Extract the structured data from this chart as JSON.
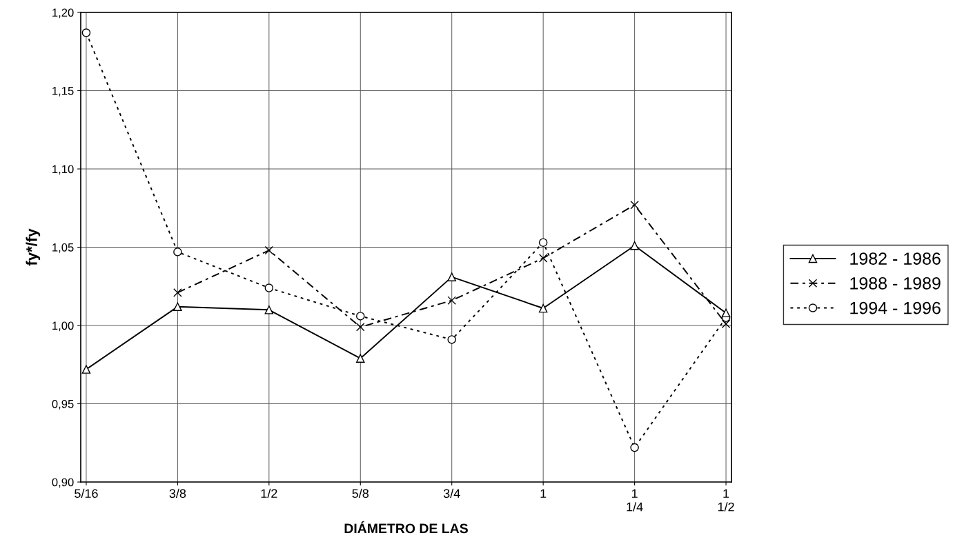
{
  "chart_data": {
    "type": "line",
    "xlabel": "DIÁMETRO DE LAS",
    "ylabel": "fy*/fy",
    "categories": [
      "5/16",
      "3/8",
      "1/2",
      "5/8",
      "3/4",
      "1",
      "1\n1/4",
      "1\n1/2"
    ],
    "series": [
      {
        "name": "1982 - 1986",
        "color": "#000000",
        "marker": "triangle",
        "line_style": "solid",
        "values": [
          0.972,
          1.012,
          1.01,
          0.979,
          1.031,
          1.011,
          1.051,
          1.008
        ]
      },
      {
        "name": "1988 - 1989",
        "color": "#000000",
        "marker": "cross",
        "line_style": "dashed",
        "values": [
          null,
          1.021,
          1.048,
          0.999,
          1.016,
          1.043,
          1.077,
          1.001
        ]
      },
      {
        "name": "1994 - 1996",
        "color": "#000000",
        "marker": "circle",
        "line_style": "dotted",
        "values": [
          1.187,
          1.047,
          1.024,
          1.006,
          0.991,
          1.053,
          0.922,
          1.005
        ]
      }
    ],
    "ylim": [
      0.9,
      1.2
    ],
    "yticks": [
      {
        "value": 0.9,
        "label": "0,90"
      },
      {
        "value": 0.95,
        "label": "0,95"
      },
      {
        "value": 1.0,
        "label": "1,00"
      },
      {
        "value": 1.05,
        "label": "1,05"
      },
      {
        "value": 1.1,
        "label": "1,10"
      },
      {
        "value": 1.15,
        "label": "1,15"
      },
      {
        "value": 1.2,
        "label": "1,20"
      }
    ],
    "grid": true,
    "legend": "right"
  }
}
